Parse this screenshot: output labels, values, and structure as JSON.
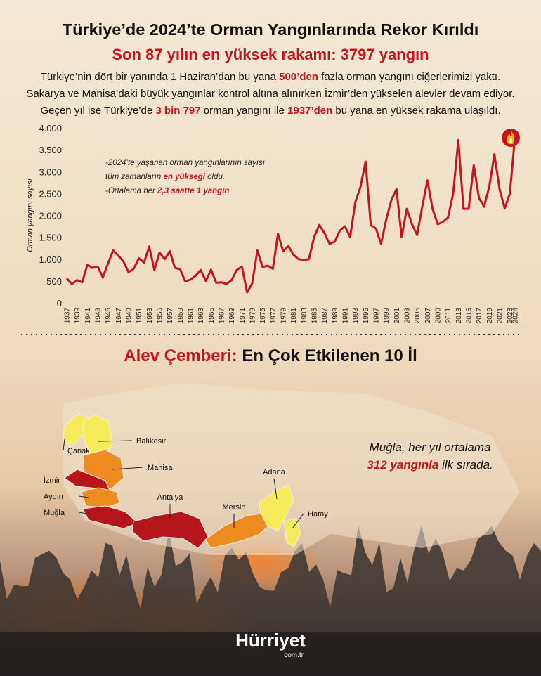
{
  "header": {
    "title": "Türkiye’de 2024’te Orman Yangınlarında Rekor Kırıldı",
    "subtitle": "Son 87 yılın en yüksek rakamı: 3797 yangın",
    "paragraph": [
      [
        {
          "text": "Türkiye’nin dört bir yanında 1 Haziran’dan bu yana "
        },
        {
          "text": "500’den",
          "highlight": true
        },
        {
          "text": " fazla orman yangını ciğerlerimizi yaktı."
        }
      ],
      [
        {
          "text": "Sakarya ve Manisa’daki büyük yangınlar kontrol altına alınırken İzmir’den yükselen alevler devam ediyor."
        }
      ],
      [
        {
          "text": "Geçen yıl ise Türkiye’de "
        },
        {
          "text": "3 bin 797",
          "highlight": true
        },
        {
          "text": " orman yangını ile "
        },
        {
          "text": "1937’den",
          "highlight": true
        },
        {
          "text": " bu yana en yüksek rakama ulaşıldı."
        }
      ]
    ]
  },
  "chart_data": {
    "type": "line",
    "y_label": "Orman yangını sayısı",
    "color": "#c8141c",
    "x": [
      1937,
      1938,
      1939,
      1940,
      1941,
      1942,
      1943,
      1944,
      1945,
      1946,
      1947,
      1948,
      1949,
      1950,
      1951,
      1952,
      1953,
      1954,
      1955,
      1956,
      1957,
      1958,
      1959,
      1960,
      1961,
      1962,
      1963,
      1964,
      1965,
      1966,
      1967,
      1968,
      1969,
      1970,
      1971,
      1972,
      1973,
      1974,
      1975,
      1976,
      1977,
      1978,
      1979,
      1980,
      1981,
      1982,
      1983,
      1984,
      1985,
      1986,
      1987,
      1988,
      1989,
      1990,
      1991,
      1992,
      1993,
      1994,
      1995,
      1996,
      1997,
      1998,
      1999,
      2000,
      2001,
      2002,
      2003,
      2004,
      2005,
      2006,
      2007,
      2008,
      2009,
      2010,
      2011,
      2012,
      2013,
      2014,
      2015,
      2016,
      2017,
      2018,
      2019,
      2020,
      2021,
      2022,
      2023,
      2024
    ],
    "values": [
      560,
      430,
      520,
      470,
      870,
      800,
      830,
      580,
      900,
      1200,
      1080,
      950,
      700,
      780,
      1020,
      920,
      1290,
      750,
      1150,
      1000,
      1180,
      800,
      770,
      490,
      530,
      620,
      750,
      500,
      760,
      460,
      470,
      430,
      520,
      750,
      830,
      240,
      450,
      1200,
      820,
      850,
      780,
      1580,
      1180,
      1300,
      1100,
      1000,
      980,
      1000,
      1500,
      1780,
      1600,
      1350,
      1400,
      1650,
      1750,
      1500,
      2300,
      2650,
      3230,
      1780,
      1700,
      1350,
      1900,
      2350,
      2600,
      1500,
      2150,
      1800,
      1550,
      2200,
      2800,
      2150,
      1800,
      1850,
      1950,
      2500,
      3720,
      2150,
      2150,
      3150,
      2400,
      2200,
      2650,
      3400,
      2600,
      2160,
      2500,
      3797
    ],
    "xlim": [
      1937,
      2024
    ],
    "xticks": [
      1937,
      1939,
      1941,
      1943,
      1945,
      1947,
      1949,
      1951,
      1953,
      1955,
      1957,
      1959,
      1961,
      1963,
      1965,
      1967,
      1969,
      1971,
      1973,
      1975,
      1977,
      1979,
      1981,
      1983,
      1985,
      1987,
      1989,
      1991,
      1993,
      1995,
      1997,
      1999,
      2001,
      2003,
      2005,
      2007,
      2009,
      2011,
      2013,
      2015,
      2017,
      2019,
      2021,
      2023,
      2024
    ],
    "ylim": [
      0,
      4000
    ],
    "yticks": [
      {
        "value": 4000,
        "label": "4.000"
      },
      {
        "value": 3500,
        "label": "3.500"
      },
      {
        "value": 3000,
        "label": "3.000"
      },
      {
        "value": 2500,
        "label": "2.500"
      },
      {
        "value": 2000,
        "label": "2.000"
      },
      {
        "value": 1500,
        "label": "1.500"
      },
      {
        "value": 1000,
        "label": "1.000"
      },
      500,
      0
    ],
    "grid": false,
    "annotation": [
      [
        {
          "text": "-2024’te yaşanan orman yangınlarının sayısı"
        }
      ],
      [
        {
          "text": "tüm zamanların "
        },
        {
          "text": "en yükseği",
          "highlight": true
        },
        {
          "text": " oldu."
        }
      ],
      [
        {
          "text": "-Ortalama her "
        },
        {
          "text": "2,3 saatte 1 yangın",
          "highlight": true
        },
        {
          "text": "."
        }
      ]
    ]
  },
  "map": {
    "title": [
      {
        "text": "Alev Çemberi:",
        "highlight": true
      },
      {
        "text": " En Çok Etkilenen 10 İl"
      }
    ],
    "provinces": [
      {
        "name": "Çanakkale",
        "color": "#f4ec5a"
      },
      {
        "name": "Balıkesir",
        "color": "#f4ec5a"
      },
      {
        "name": "Manisa",
        "color": "#ee8c22"
      },
      {
        "name": "İzmir",
        "color": "#b5161a"
      },
      {
        "name": "Aydın",
        "color": "#ee8c22"
      },
      {
        "name": "Muğla",
        "color": "#b5161a"
      },
      {
        "name": "Antalya",
        "color": "#b5161a"
      },
      {
        "name": "Mersin",
        "color": "#ee8c22"
      },
      {
        "name": "Adana",
        "color": "#f4ec5a"
      },
      {
        "name": "Hatay",
        "color": "#f4ec5a"
      }
    ],
    "note": [
      [
        {
          "text": "Muğla, her yıl ortalama"
        }
      ],
      [
        {
          "text": "312 yangınla",
          "highlight": true
        },
        {
          "text": " ilk sırada."
        }
      ]
    ]
  },
  "footer": {
    "logo": "Hürriyet",
    "domain": "com.tr"
  }
}
